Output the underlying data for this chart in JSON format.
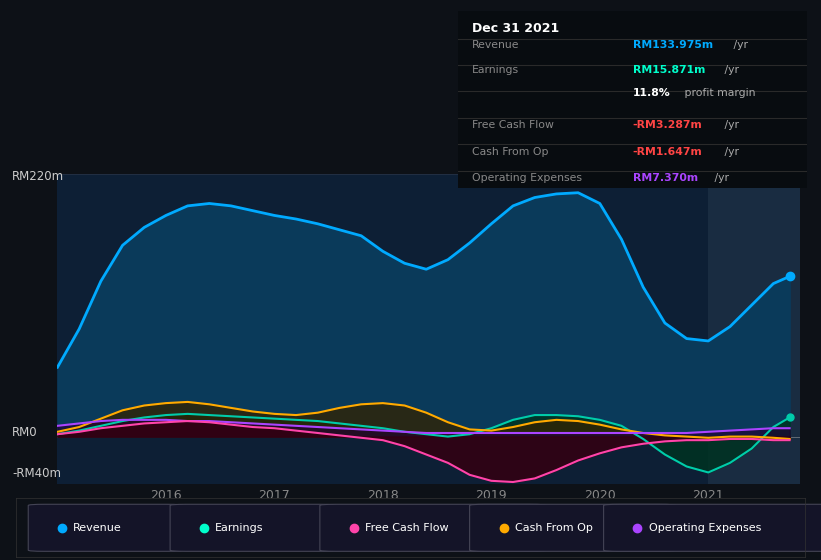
{
  "bg_color": "#0d1117",
  "chart_bg": "#0d1f35",
  "ylim": [
    -40,
    220
  ],
  "yticks": [
    -40,
    0,
    220
  ],
  "ytick_labels": [
    "-RM40m",
    "RM0",
    "RM220m"
  ],
  "xlim": [
    2015.0,
    2021.85
  ],
  "xticks": [
    2016,
    2017,
    2018,
    2019,
    2020,
    2021
  ],
  "legend_items": [
    {
      "label": "Revenue",
      "color": "#00aaff"
    },
    {
      "label": "Earnings",
      "color": "#00ffcc"
    },
    {
      "label": "Free Cash Flow",
      "color": "#ff44aa"
    },
    {
      "label": "Cash From Op",
      "color": "#ffaa00"
    },
    {
      "label": "Operating Expenses",
      "color": "#aa44ff"
    }
  ],
  "highlight_x_start": 2021.0,
  "highlight_x_end": 2021.85,
  "revenue": {
    "x": [
      2015.0,
      2015.2,
      2015.4,
      2015.6,
      2015.8,
      2016.0,
      2016.2,
      2016.4,
      2016.6,
      2016.8,
      2017.0,
      2017.2,
      2017.4,
      2017.6,
      2017.8,
      2018.0,
      2018.2,
      2018.4,
      2018.6,
      2018.8,
      2019.0,
      2019.2,
      2019.4,
      2019.6,
      2019.8,
      2020.0,
      2020.2,
      2020.4,
      2020.6,
      2020.8,
      2021.0,
      2021.2,
      2021.4,
      2021.6,
      2021.75
    ],
    "y": [
      58,
      90,
      130,
      160,
      175,
      185,
      193,
      195,
      193,
      189,
      185,
      182,
      178,
      173,
      168,
      155,
      145,
      140,
      148,
      162,
      178,
      193,
      200,
      203,
      204,
      195,
      165,
      125,
      95,
      82,
      80,
      92,
      110,
      128,
      134
    ],
    "color": "#00aaff",
    "fill_color": "#0a3a5a",
    "linewidth": 2.0
  },
  "earnings": {
    "x": [
      2015.0,
      2015.2,
      2015.4,
      2015.6,
      2015.8,
      2016.0,
      2016.2,
      2016.4,
      2016.6,
      2016.8,
      2017.0,
      2017.2,
      2017.4,
      2017.6,
      2017.8,
      2018.0,
      2018.2,
      2018.4,
      2018.6,
      2018.8,
      2019.0,
      2019.2,
      2019.4,
      2019.6,
      2019.8,
      2020.0,
      2020.2,
      2020.4,
      2020.6,
      2020.8,
      2021.0,
      2021.2,
      2021.4,
      2021.6,
      2021.75
    ],
    "y": [
      2,
      5,
      9,
      13,
      16,
      18,
      19,
      18,
      17,
      16,
      15,
      14,
      13,
      11,
      9,
      7,
      4,
      2,
      0,
      2,
      7,
      14,
      18,
      18,
      17,
      14,
      9,
      -2,
      -15,
      -25,
      -30,
      -22,
      -10,
      8,
      16
    ],
    "color": "#00ccaa",
    "fill_color": "#003322",
    "linewidth": 1.5
  },
  "free_cash_flow": {
    "x": [
      2015.0,
      2015.2,
      2015.4,
      2015.6,
      2015.8,
      2016.0,
      2016.2,
      2016.4,
      2016.6,
      2016.8,
      2017.0,
      2017.2,
      2017.4,
      2017.6,
      2017.8,
      2018.0,
      2018.2,
      2018.4,
      2018.6,
      2018.8,
      2019.0,
      2019.2,
      2019.4,
      2019.6,
      2019.8,
      2020.0,
      2020.2,
      2020.4,
      2020.6,
      2020.8,
      2021.0,
      2021.2,
      2021.4,
      2021.6,
      2021.75
    ],
    "y": [
      2,
      4,
      7,
      9,
      11,
      12,
      13,
      12,
      10,
      8,
      7,
      5,
      3,
      1,
      -1,
      -3,
      -8,
      -15,
      -22,
      -32,
      -37,
      -38,
      -35,
      -28,
      -20,
      -14,
      -9,
      -6,
      -4,
      -3,
      -3,
      -2,
      -2,
      -3,
      -3
    ],
    "color": "#ff44aa",
    "fill_color": "#330011",
    "linewidth": 1.5
  },
  "cash_from_op": {
    "x": [
      2015.0,
      2015.2,
      2015.4,
      2015.6,
      2015.8,
      2016.0,
      2016.2,
      2016.4,
      2016.6,
      2016.8,
      2017.0,
      2017.2,
      2017.4,
      2017.6,
      2017.8,
      2018.0,
      2018.2,
      2018.4,
      2018.6,
      2018.8,
      2019.0,
      2019.2,
      2019.4,
      2019.6,
      2019.8,
      2020.0,
      2020.2,
      2020.4,
      2020.6,
      2020.8,
      2021.0,
      2021.2,
      2021.4,
      2021.6,
      2021.75
    ],
    "y": [
      4,
      8,
      15,
      22,
      26,
      28,
      29,
      27,
      24,
      21,
      19,
      18,
      20,
      24,
      27,
      28,
      26,
      20,
      12,
      6,
      5,
      8,
      12,
      14,
      13,
      10,
      6,
      3,
      1,
      0,
      -1,
      0,
      0,
      -1,
      -2
    ],
    "color": "#ffaa00",
    "fill_color": "#332200",
    "linewidth": 1.5
  },
  "operating_expenses": {
    "x": [
      2015.0,
      2015.2,
      2015.4,
      2015.6,
      2015.8,
      2016.0,
      2016.2,
      2016.4,
      2016.6,
      2016.8,
      2017.0,
      2017.2,
      2017.4,
      2017.6,
      2017.8,
      2018.0,
      2018.2,
      2018.4,
      2018.6,
      2018.8,
      2019.0,
      2019.2,
      2019.4,
      2019.6,
      2019.8,
      2020.0,
      2020.2,
      2020.4,
      2020.6,
      2020.8,
      2021.0,
      2021.2,
      2021.4,
      2021.6,
      2021.75
    ],
    "y": [
      9,
      11,
      13,
      14,
      14,
      14,
      13,
      13,
      12,
      11,
      10,
      9,
      8,
      7,
      6,
      5,
      4,
      3,
      3,
      3,
      3,
      3,
      3,
      3,
      3,
      3,
      3,
      3,
      3,
      3,
      4,
      5,
      6,
      7,
      7
    ],
    "color": "#aa44ff",
    "fill_color": "#220033",
    "linewidth": 1.5
  },
  "info_box": {
    "title": "Dec 31 2021",
    "rows": [
      {
        "label": "Revenue",
        "val": "RM133.975m",
        "val_color": "#00aaff",
        "suffix": " /yr",
        "extra": null
      },
      {
        "label": "Earnings",
        "val": "RM15.871m",
        "val_color": "#00ffcc",
        "suffix": " /yr",
        "extra": null
      },
      {
        "label": "",
        "val": "11.8%",
        "val_color": "#ffffff",
        "suffix": " profit margin",
        "extra": null
      },
      {
        "label": "Free Cash Flow",
        "val": "-RM3.287m",
        "val_color": "#ff4444",
        "suffix": " /yr",
        "extra": null
      },
      {
        "label": "Cash From Op",
        "val": "-RM1.647m",
        "val_color": "#ff4444",
        "suffix": " /yr",
        "extra": null
      },
      {
        "label": "Operating Expenses",
        "val": "RM7.370m",
        "val_color": "#aa44ff",
        "suffix": " /yr",
        "extra": null
      }
    ]
  }
}
